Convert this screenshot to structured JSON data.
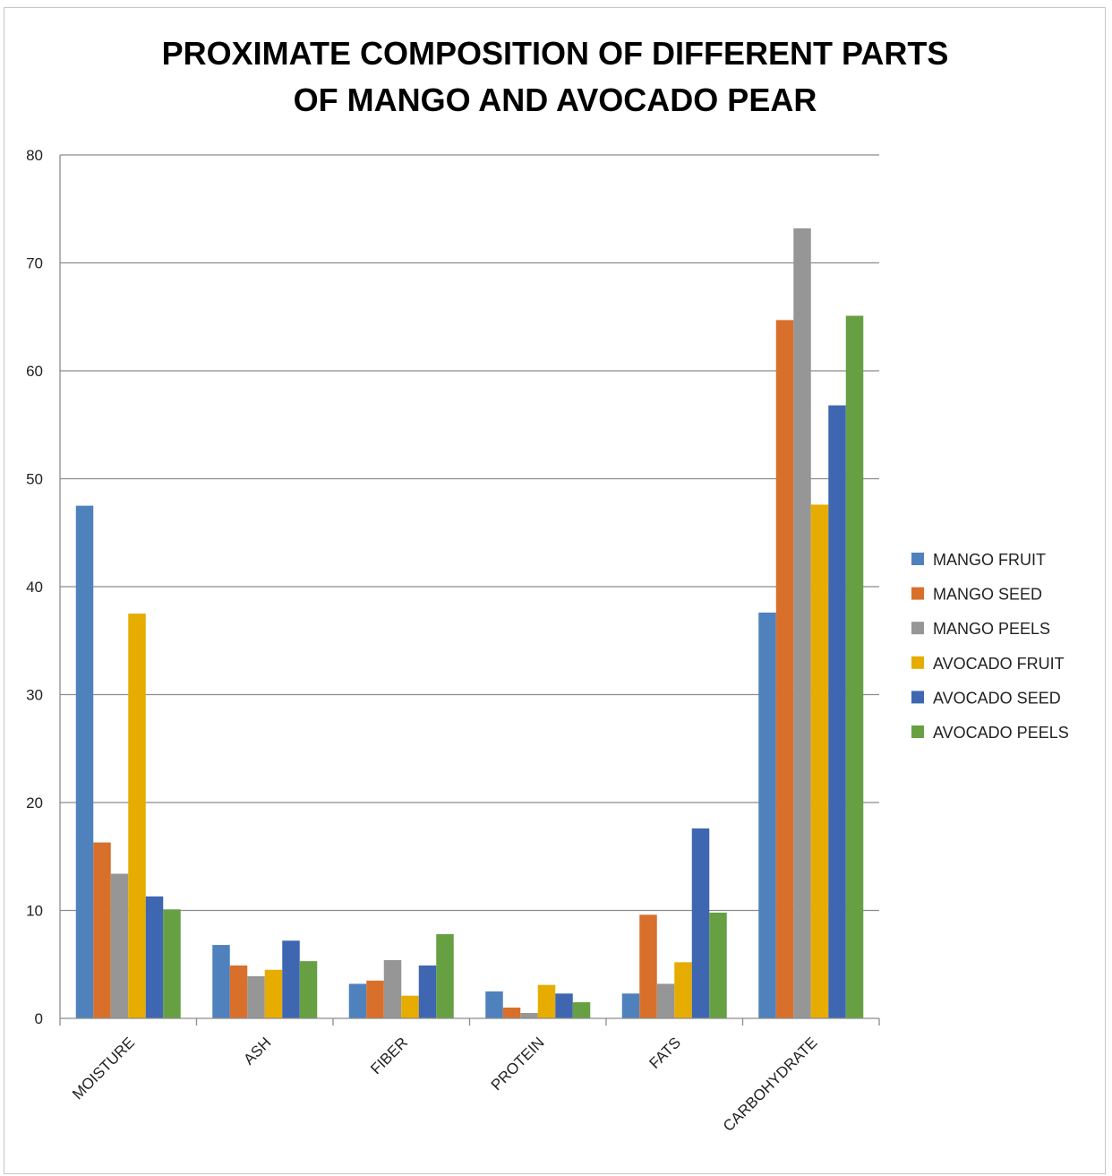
{
  "chart_data": {
    "type": "bar",
    "title_lines": [
      "PROXIMATE COMPOSITION OF  DIFFERENT PARTS",
      "OF MANGO AND AVOCADO PEAR"
    ],
    "xlabel": "",
    "ylabel": "",
    "ylim": [
      0,
      80
    ],
    "yticks": [
      "0",
      "10",
      "20",
      "30",
      "40",
      "50",
      "60",
      "70",
      "80"
    ],
    "grid": true,
    "legend_position": "right",
    "categories": [
      "MOISTURE",
      "ASH",
      "FIBER",
      "PROTEIN",
      "FATS",
      "CARBOHYDRATE"
    ],
    "series": [
      {
        "name": "MANGO FRUIT",
        "color": "#4f81bd",
        "values": [
          47.5,
          6.8,
          3.2,
          2.5,
          2.3,
          37.6
        ]
      },
      {
        "name": "MANGO SEED",
        "color": "#d8702b",
        "values": [
          16.3,
          4.9,
          3.5,
          1.0,
          9.6,
          64.7
        ]
      },
      {
        "name": "MANGO PEELS",
        "color": "#969696",
        "values": [
          13.4,
          3.9,
          5.4,
          0.5,
          3.2,
          73.2
        ]
      },
      {
        "name": "AVOCADO FRUIT",
        "color": "#e6ac00",
        "values": [
          37.5,
          4.5,
          2.1,
          3.1,
          5.2,
          47.6
        ]
      },
      {
        "name": "AVOCADO SEED",
        "color": "#3f66b1",
        "values": [
          11.3,
          7.2,
          4.9,
          2.3,
          17.6,
          56.8
        ]
      },
      {
        "name": "AVOCADO PEELS",
        "color": "#66a042",
        "values": [
          10.1,
          5.3,
          7.8,
          1.5,
          9.8,
          65.1
        ]
      }
    ]
  }
}
